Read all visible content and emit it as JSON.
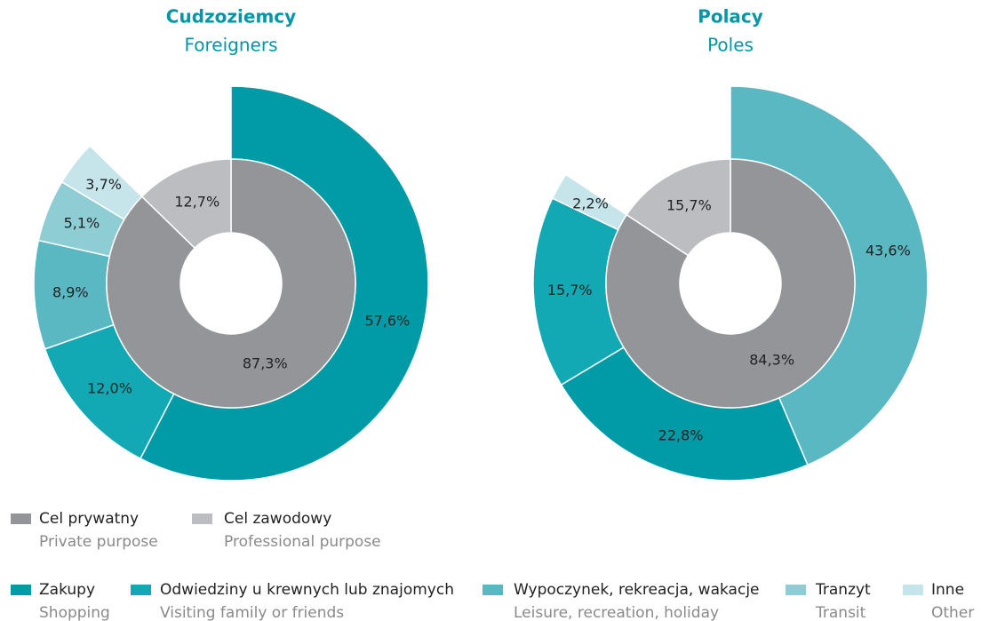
{
  "chart_data": [
    {
      "type": "sunburst",
      "title": "Cudzoziemcy",
      "subtitle": "Foreigners",
      "inner": {
        "values": [
          87.3,
          12.7
        ],
        "value_labels": [
          "87,3%",
          "12,7%"
        ],
        "colors": [
          "#939598",
          "#bcbdc0"
        ]
      },
      "outer": {
        "values": [
          57.6,
          12.0,
          8.9,
          5.1,
          3.7
        ],
        "value_labels": [
          "57,6%",
          "12,0%",
          "8,9%",
          "5,1%",
          "3,7%"
        ],
        "colors": [
          "#009ba6",
          "#12a9b5",
          "#5ab8c3",
          "#8fcdd5",
          "#c5e5ea"
        ]
      }
    },
    {
      "type": "sunburst",
      "title": "Polacy",
      "subtitle": "Poles",
      "inner": {
        "values": [
          84.3,
          15.7
        ],
        "value_labels": [
          "84,3%",
          "15,7%"
        ],
        "colors": [
          "#939598",
          "#bcbdc0"
        ]
      },
      "outer": {
        "values": [
          43.6,
          22.8,
          15.7,
          2.2
        ],
        "value_labels": [
          "43,6%",
          "22,8%",
          "15,7%",
          "2,2%"
        ],
        "colors": [
          "#5ab8c3",
          "#009ba6",
          "#12a9b5",
          "#c5e5ea"
        ]
      }
    }
  ],
  "legend": {
    "inner": [
      {
        "name": "Cel prywatny",
        "name_en": "Private purpose",
        "color": "#939598"
      },
      {
        "name": "Cel zawodowy",
        "name_en": "Professional purpose",
        "color": "#bcbdc0"
      }
    ],
    "outer": [
      {
        "name": "Zakupy",
        "name_en": "Shopping",
        "color": "#009ba6"
      },
      {
        "name": "Odwiedziny u krewnych lub znajomych",
        "name_en": "Visiting family or friends",
        "color": "#12a9b5"
      },
      {
        "name": "Wypoczynek, rekreacja, wakacje",
        "name_en": "Leisure, recreation, holiday",
        "color": "#5ab8c3"
      },
      {
        "name": "Tranzyt",
        "name_en": "Transit",
        "color": "#8fcdd5"
      },
      {
        "name": "Inne",
        "name_en": "Other",
        "color": "#c5e5ea"
      }
    ]
  }
}
